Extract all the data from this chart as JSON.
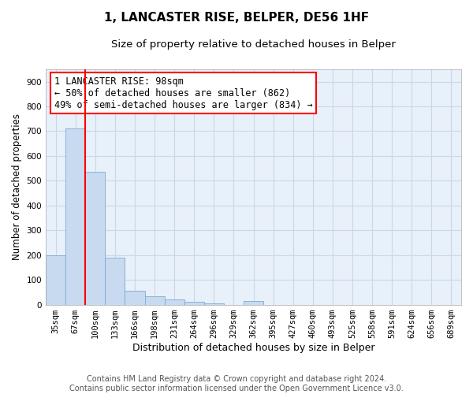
{
  "title1": "1, LANCASTER RISE, BELPER, DE56 1HF",
  "title2": "Size of property relative to detached houses in Belper",
  "xlabel": "Distribution of detached houses by size in Belper",
  "ylabel": "Number of detached properties",
  "categories": [
    "35sqm",
    "67sqm",
    "100sqm",
    "133sqm",
    "166sqm",
    "198sqm",
    "231sqm",
    "264sqm",
    "296sqm",
    "329sqm",
    "362sqm",
    "395sqm",
    "427sqm",
    "460sqm",
    "493sqm",
    "525sqm",
    "558sqm",
    "591sqm",
    "624sqm",
    "656sqm",
    "689sqm"
  ],
  "values": [
    200,
    710,
    535,
    190,
    55,
    35,
    20,
    10,
    5,
    0,
    15,
    0,
    0,
    0,
    0,
    0,
    0,
    0,
    0,
    0,
    0
  ],
  "bar_color": "#c8daf0",
  "bar_edge_color": "#7aabcf",
  "red_line_index": 2,
  "annotation_line1": "1 LANCASTER RISE: 98sqm",
  "annotation_line2": "← 50% of detached houses are smaller (862)",
  "annotation_line3": "49% of semi-detached houses are larger (834) →",
  "ylim": [
    0,
    950
  ],
  "yticks": [
    0,
    100,
    200,
    300,
    400,
    500,
    600,
    700,
    800,
    900
  ],
  "grid_color": "#c8d8e8",
  "background_color": "#e8f0fa",
  "footer": "Contains HM Land Registry data © Crown copyright and database right 2024.\nContains public sector information licensed under the Open Government Licence v3.0.",
  "title1_fontsize": 11,
  "title2_fontsize": 9.5,
  "xlabel_fontsize": 9,
  "ylabel_fontsize": 8.5,
  "tick_fontsize": 7.5,
  "annotation_fontsize": 8.5,
  "footer_fontsize": 7
}
